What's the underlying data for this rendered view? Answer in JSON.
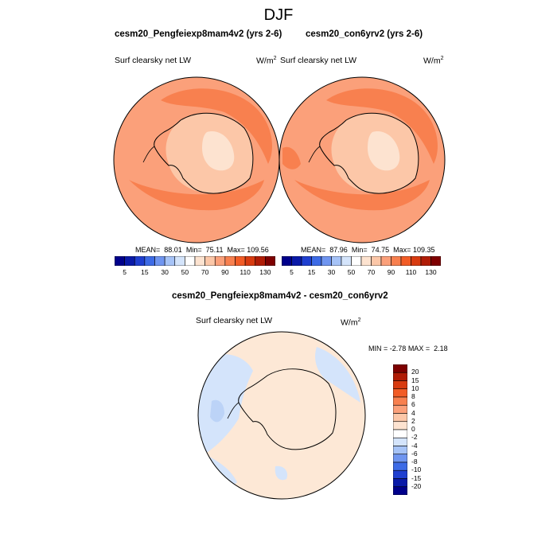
{
  "figure": {
    "title": "DJF"
  },
  "panels": [
    {
      "title": "cesm20_Pengfeiexp8mam4v2 (yrs 2-6)",
      "variable": "Surf clearsky net LW",
      "units_base": "W/m",
      "units_exp": "2",
      "stats": {
        "mean_label": "MEAN=",
        "mean": "88.01",
        "min_label": "Min=",
        "min": "75.11",
        "max_label": "Max=",
        "max": "109.56"
      }
    },
    {
      "title": "cesm20_con6yrv2 (yrs 2-6)",
      "variable": "Surf clearsky net LW",
      "units_base": "W/m",
      "units_exp": "2",
      "stats": {
        "mean_label": "MEAN=",
        "mean": "87.96",
        "min_label": "Min=",
        "min": "74.75",
        "max_label": "Max=",
        "max": "109.35"
      }
    }
  ],
  "diff_panel": {
    "title": "cesm20_Pengfeiexp8mam4v2 - cesm20_con6yrv2",
    "variable": "Surf clearsky net LW",
    "units_base": "W/m",
    "units_exp": "2",
    "stats": {
      "min_label": "MIN =",
      "min": "-2.78",
      "max_label": "MAX =",
      "max": "2.18"
    }
  },
  "colorbar_abs": {
    "labels": [
      "5",
      "15",
      "30",
      "50",
      "70",
      "90",
      "110",
      "130"
    ],
    "colors": [
      "#00008b",
      "#0a1aa8",
      "#1f3fd0",
      "#3d6be6",
      "#6f95f0",
      "#a6c3f7",
      "#d4e4fb",
      "#ffffff",
      "#fde3d0",
      "#fcc7a8",
      "#fba07a",
      "#f8804f",
      "#f25c26",
      "#d83b10",
      "#b01c06",
      "#7e0000"
    ]
  },
  "colorbar_diff": {
    "labels": [
      "20",
      "15",
      "10",
      "8",
      "6",
      "4",
      "2",
      "0",
      "-2",
      "-4",
      "-6",
      "-8",
      "-10",
      "-15",
      "-20"
    ],
    "colors": [
      "#7e0000",
      "#b01c06",
      "#d83b10",
      "#f25c26",
      "#f8804f",
      "#fba07a",
      "#fcc7a8",
      "#fde3d0",
      "#ffffff",
      "#d4e4fb",
      "#a6c3f7",
      "#6f95f0",
      "#3d6be6",
      "#1f3fd0",
      "#0a1aa8",
      "#00008b"
    ]
  },
  "map_colors": {
    "base": "#fba07a",
    "high": "#f8804f",
    "low": "#fcc7a8",
    "lower": "#fde3d0",
    "diff_pos": "#fde8d6",
    "diff_neg": "#d4e4fb",
    "diff_neg2": "#bcd3f7"
  }
}
